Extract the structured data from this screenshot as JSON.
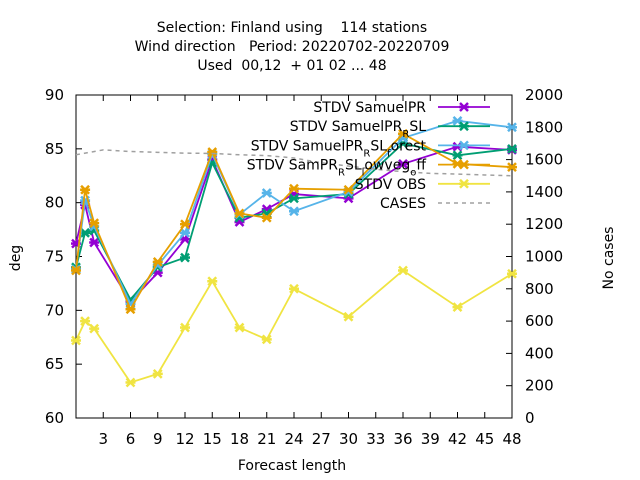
{
  "chart_data": {
    "type": "line",
    "title_lines": [
      "Selection: Finland using    114 stations",
      "Wind direction   Period: 20220702-20220709",
      "Used  00,12  + 01 02 ... 48"
    ],
    "xlabel": "Forecast length",
    "ylabel": "deg",
    "y2label": "No cases",
    "xlim": [
      0,
      48
    ],
    "ylim": [
      60,
      90
    ],
    "y2lim": [
      0,
      2000
    ],
    "xticks": [
      3,
      6,
      9,
      12,
      15,
      18,
      21,
      24,
      27,
      30,
      33,
      36,
      39,
      42,
      45,
      48
    ],
    "yticks": [
      60,
      65,
      70,
      75,
      80,
      85,
      90
    ],
    "y2ticks": [
      0,
      200,
      400,
      600,
      800,
      1000,
      1200,
      1400,
      1600,
      1800,
      2000
    ],
    "grid": false,
    "legend_position": "top-right",
    "x": [
      0,
      1,
      2,
      6,
      9,
      12,
      15,
      18,
      21,
      24,
      30,
      36,
      42,
      48
    ],
    "series": [
      {
        "name": "STDV SamuelPR",
        "color": "#9400d3",
        "marker": "x",
        "values": [
          76.2,
          79.8,
          76.3,
          70.8,
          73.5,
          76.6,
          84.0,
          78.2,
          79.4,
          80.8,
          80.4,
          83.6,
          85.2,
          84.9
        ]
      },
      {
        "name": "STDV SamuelPR_SL",
        "legend_parts": [
          "STDV SamuelPR",
          "R",
          "SL"
        ],
        "color": "#009e73",
        "marker": "x",
        "values": [
          74.0,
          77.2,
          77.4,
          71.0,
          74.0,
          74.9,
          83.7,
          78.6,
          79.0,
          80.4,
          80.8,
          85.5,
          84.4,
          85.0
        ]
      },
      {
        "name": "STDV SamuelPR_SL_forest",
        "legend_parts": [
          "STDV SamuelPR",
          "R",
          "SL",
          "f",
          "orest"
        ],
        "color": "#56b4e9",
        "marker": "x",
        "values": [
          73.8,
          80.2,
          77.8,
          70.6,
          74.2,
          77.2,
          84.5,
          78.9,
          80.9,
          79.2,
          81.0,
          86.0,
          87.6,
          87.0
        ]
      },
      {
        "name": "STDV SamPR_SL_lowveg_off",
        "legend_parts": [
          "STDV SamPR",
          "R",
          "SL",
          "l",
          "owveg",
          "o",
          "ff"
        ],
        "color": "#e69f00",
        "marker": "x",
        "values": [
          73.7,
          81.2,
          78.1,
          70.1,
          74.5,
          78.0,
          84.7,
          79.0,
          78.6,
          81.3,
          81.2,
          86.4,
          83.6,
          83.3
        ]
      },
      {
        "name": "STDV OBS",
        "color": "#f0e442",
        "marker": "x",
        "values": [
          67.2,
          69.0,
          68.3,
          63.3,
          64.1,
          68.4,
          72.7,
          68.4,
          67.3,
          72.0,
          69.4,
          73.7,
          70.3,
          73.4
        ]
      },
      {
        "name": "CASES",
        "color": "#a0a0a0",
        "dashed": true,
        "axis": "y2",
        "x": [
          0,
          3,
          6,
          9,
          12,
          15,
          18,
          21,
          24,
          27,
          30,
          33,
          36,
          39,
          42,
          45,
          48
        ],
        "values": [
          1630,
          1660,
          1650,
          1645,
          1640,
          1638,
          1630,
          1625,
          1610,
          1580,
          1560,
          1540,
          1525,
          1515,
          1510,
          1505,
          1500
        ]
      }
    ]
  }
}
